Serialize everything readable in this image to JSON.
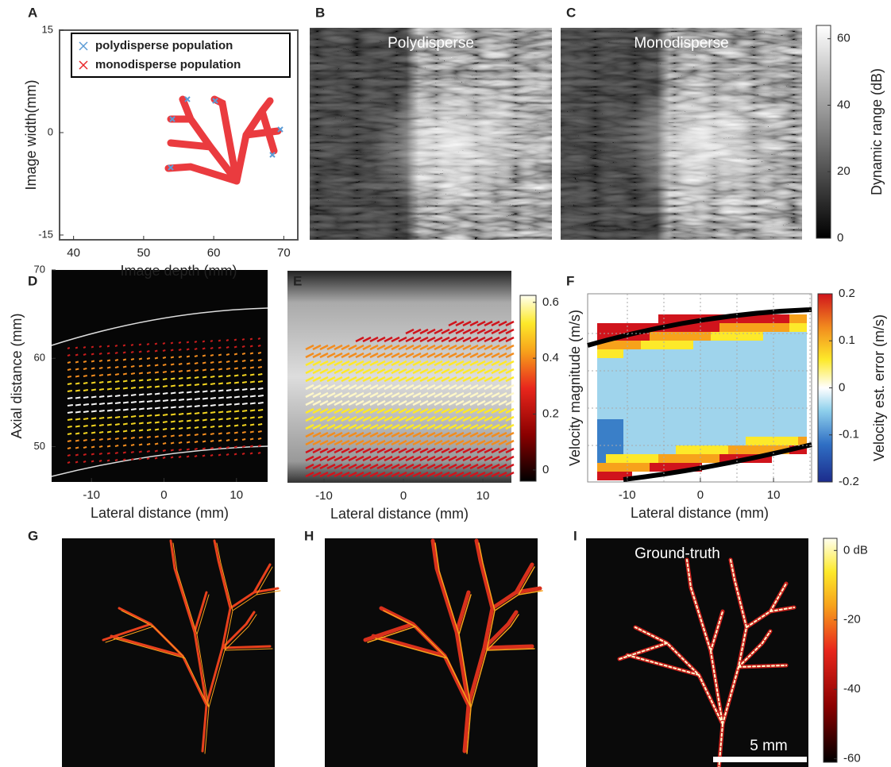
{
  "panels": [
    {
      "label": "A",
      "xlabel": "Image depth (mm)",
      "ylabel": "Image width(mm)",
      "xlim": [
        38,
        72
      ],
      "ylim": [
        -15.7,
        15
      ],
      "xticks": [
        40,
        50,
        60,
        70
      ],
      "yticks": [
        -15,
        0,
        15
      ],
      "legend": [
        {
          "name": "polydisperse population",
          "color": "#5b9bd5"
        },
        {
          "name": "monodisperse population",
          "color": "#e8262a"
        }
      ]
    },
    {
      "label": "B",
      "title": "Polydisperse"
    },
    {
      "label": "C",
      "title": "Monodisperse",
      "colorbar": {
        "label": "Dynamic range (dB)",
        "lim": [
          0,
          64
        ],
        "ticks": [
          0,
          20,
          40,
          60
        ]
      }
    },
    {
      "label": "D",
      "xlabel": "Lateral distance (mm)",
      "ylabel": "Axial distance (mm)",
      "xlim": [
        -15.5,
        14.3
      ],
      "ylim": [
        46,
        70
      ],
      "xticks": [
        -10,
        0,
        10
      ],
      "yticks": [
        50,
        60,
        70
      ]
    },
    {
      "label": "E",
      "xlabel": "Lateral distance (mm)",
      "xlim": [
        -14.6,
        13.6
      ],
      "xticks": [
        -10,
        0,
        10
      ],
      "colorbar": {
        "lim": [
          -0.04,
          0.625
        ],
        "ticks": [
          0,
          0.2,
          0.4,
          0.6
        ]
      }
    },
    {
      "label": "F",
      "xlabel": "Lateral distance (mm)",
      "ylabel": "Velocity magnitude (m/s)",
      "xlim": [
        -15.4,
        15.2
      ],
      "xticks": [
        -10,
        0,
        10
      ],
      "colorbar": {
        "label": "Velocity est. error (m/s)",
        "lim": [
          -0.2,
          0.2
        ],
        "ticks": [
          -0.2,
          -0.1,
          0,
          0.1,
          0.2
        ]
      }
    },
    {
      "label": "G"
    },
    {
      "label": "H"
    },
    {
      "label": "I",
      "title": "Ground-truth",
      "scalebar": "5 mm",
      "colorbar": {
        "lim": [
          -61,
          3.5
        ],
        "ticks": [
          {
            "value": 0,
            "label": "0 dB"
          },
          -20,
          -40,
          -60
        ]
      }
    }
  ]
}
